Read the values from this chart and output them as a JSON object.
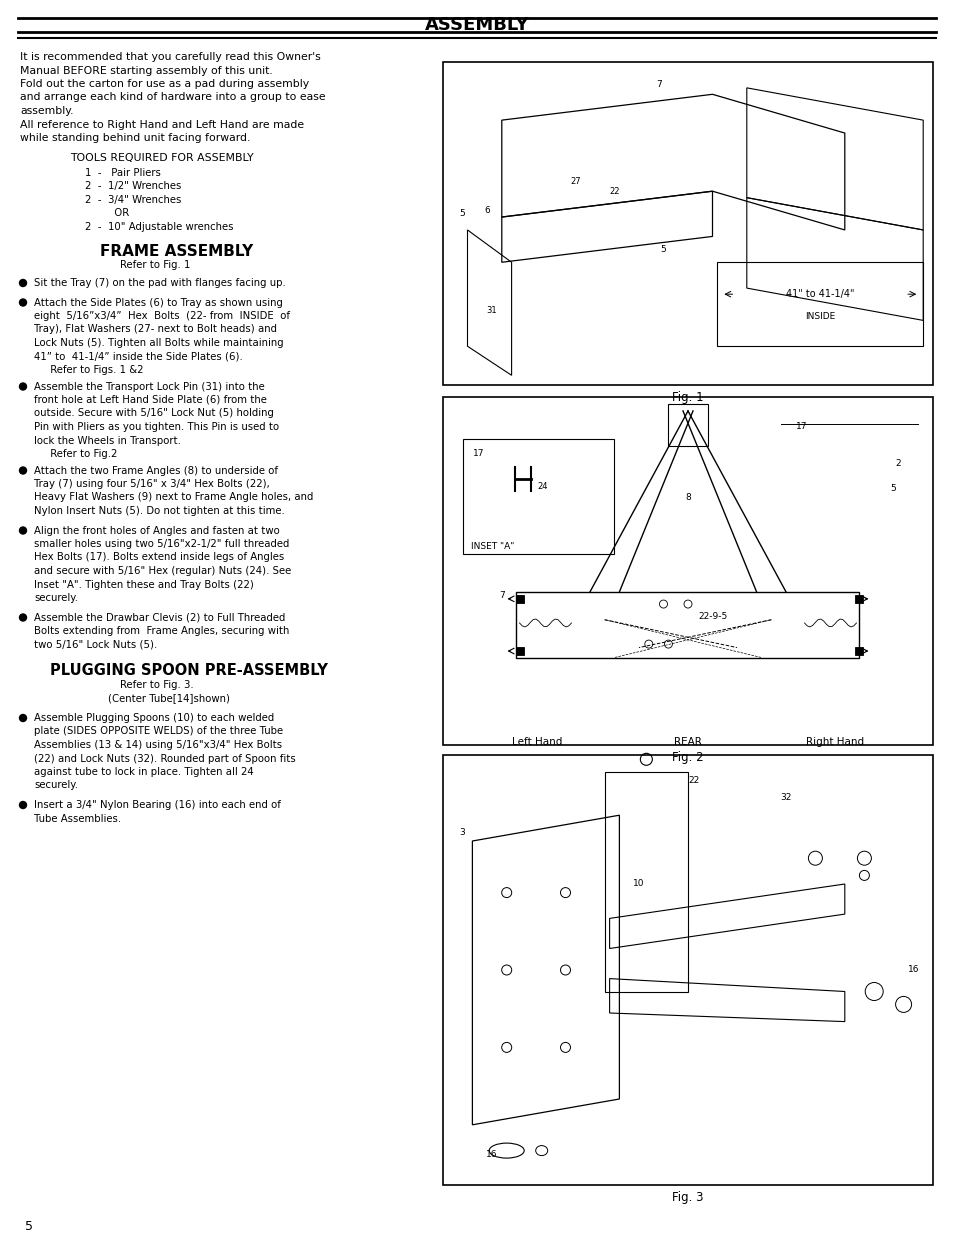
{
  "title": "ASSEMBLY",
  "page_number": "5",
  "background_color": "#ffffff",
  "intro_lines": [
    "It is recommended that you carefully read this Owner's",
    "Manual BEFORE starting assembly of this unit.",
    "Fold out the carton for use as a pad during assembly",
    "and arrange each kind of hardware into a group to ease",
    "assembly.",
    "All reference to Right Hand and Left Hand are made",
    "while standing behind unit facing forward."
  ],
  "tools_header": "TOOLS REQUIRED FOR ASSEMBLY",
  "tools_items": [
    "1  -   Pair Pliers",
    "2  -  1/2\" Wrenches",
    "2  -  3/4\" Wrenches",
    "         OR",
    "2  -  10\" Adjustable wrenches"
  ],
  "frame_header": "FRAME ASSEMBLY",
  "frame_subhead": "Refer to Fig. 1",
  "plug_header": "PLUGGING SPOON PRE-ASSEMBLY",
  "plug_subhead": "Refer to Fig. 3.",
  "plug_subhead2": "(Center Tube[14]shown)"
}
